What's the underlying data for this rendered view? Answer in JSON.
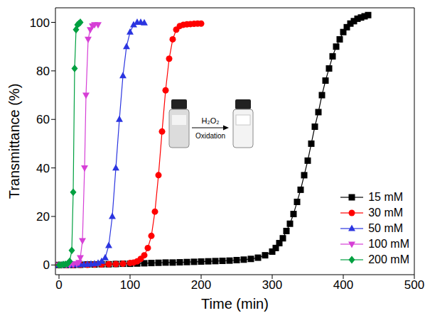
{
  "chart_data": {
    "type": "line",
    "x_label": "Time (min)",
    "y_label": "Transmittance (%)",
    "xlim": [
      -5,
      500
    ],
    "xticks": [
      0,
      100,
      200,
      300,
      400,
      500
    ],
    "ylim": [
      -4,
      106
    ],
    "yticks": [
      0,
      20,
      40,
      60,
      80,
      100
    ],
    "grid": false,
    "legend": "lower right",
    "annotations": [
      {
        "text": "H₂O₂"
      },
      {
        "text": "Oxidation"
      }
    ],
    "series": [
      {
        "name": "15 mM",
        "color": "#000000",
        "marker": "square",
        "line_style": "solid",
        "x": [
          0,
          10,
          20,
          30,
          40,
          50,
          60,
          70,
          80,
          90,
          100,
          110,
          120,
          130,
          140,
          150,
          160,
          170,
          180,
          190,
          200,
          210,
          220,
          230,
          240,
          250,
          260,
          270,
          280,
          290,
          300,
          305,
          310,
          315,
          320,
          325,
          330,
          335,
          340,
          345,
          350,
          355,
          360,
          365,
          370,
          375,
          380,
          385,
          390,
          395,
          400,
          405,
          410,
          415,
          420,
          425,
          430,
          435
        ],
        "values": [
          0,
          0,
          0,
          0.1,
          0.2,
          0.2,
          0.3,
          0.3,
          0.4,
          0.5,
          0.5,
          0.6,
          0.7,
          0.8,
          0.9,
          1,
          1,
          1.1,
          1.2,
          1.3,
          1.4,
          1.5,
          1.6,
          1.7,
          1.8,
          2,
          2.2,
          2.5,
          3,
          4,
          5.5,
          7,
          9,
          11,
          14,
          17,
          21,
          26,
          31,
          37,
          43,
          50,
          57,
          63,
          70,
          76,
          81,
          86,
          90,
          93,
          96,
          98,
          99.5,
          100.5,
          101.5,
          102,
          102.5,
          103
        ]
      },
      {
        "name": "30 mM",
        "color": "#ff0000",
        "marker": "circle",
        "line_style": "solid",
        "x": [
          0,
          10,
          20,
          30,
          40,
          50,
          60,
          70,
          80,
          90,
          100,
          105,
          110,
          115,
          120,
          125,
          130,
          135,
          140,
          145,
          150,
          155,
          160,
          165,
          170,
          175,
          180,
          185,
          190,
          195,
          200
        ],
        "values": [
          0,
          0,
          0,
          0.1,
          0.1,
          0.2,
          0.2,
          0.3,
          0.4,
          0.5,
          0.8,
          1,
          1.5,
          2.5,
          4,
          7,
          12,
          22,
          37,
          55,
          72,
          85,
          93,
          97,
          98.5,
          99,
          99.2,
          99.3,
          99.4,
          99.5,
          99.5
        ]
      },
      {
        "name": "50 mM",
        "color": "#2b35e0",
        "marker": "triangle",
        "line_style": "solid",
        "x": [
          0,
          5,
          10,
          15,
          20,
          25,
          30,
          35,
          40,
          45,
          50,
          55,
          60,
          65,
          70,
          75,
          80,
          85,
          90,
          95,
          100,
          105,
          110,
          115,
          120
        ],
        "values": [
          0,
          0,
          0,
          0,
          0.1,
          0.1,
          0.2,
          0.2,
          0.3,
          0.4,
          0.5,
          0.8,
          1.5,
          3,
          8,
          20,
          40,
          60,
          78,
          90,
          96,
          99,
          100,
          100,
          99.8
        ]
      },
      {
        "name": "100 mM",
        "color": "#d63fd6",
        "marker": "triangle-down",
        "line_style": "solid",
        "x": [
          0,
          5,
          10,
          15,
          20,
          25,
          28,
          30,
          33,
          36,
          38,
          41,
          44,
          47,
          50,
          55
        ],
        "values": [
          0,
          0,
          0,
          0.1,
          0.2,
          0.5,
          1,
          3,
          10,
          40,
          70,
          93,
          97,
          98.5,
          99,
          99
        ]
      },
      {
        "name": "200 mM",
        "color": "#00a040",
        "marker": "diamond",
        "line_style": "solid",
        "x": [
          0,
          3,
          6,
          9,
          12,
          15,
          18,
          20,
          22,
          24,
          26,
          28,
          30
        ],
        "values": [
          0,
          0,
          0.2,
          0.3,
          0.5,
          1.5,
          6,
          30,
          81,
          97,
          99,
          99.5,
          100
        ]
      }
    ]
  }
}
